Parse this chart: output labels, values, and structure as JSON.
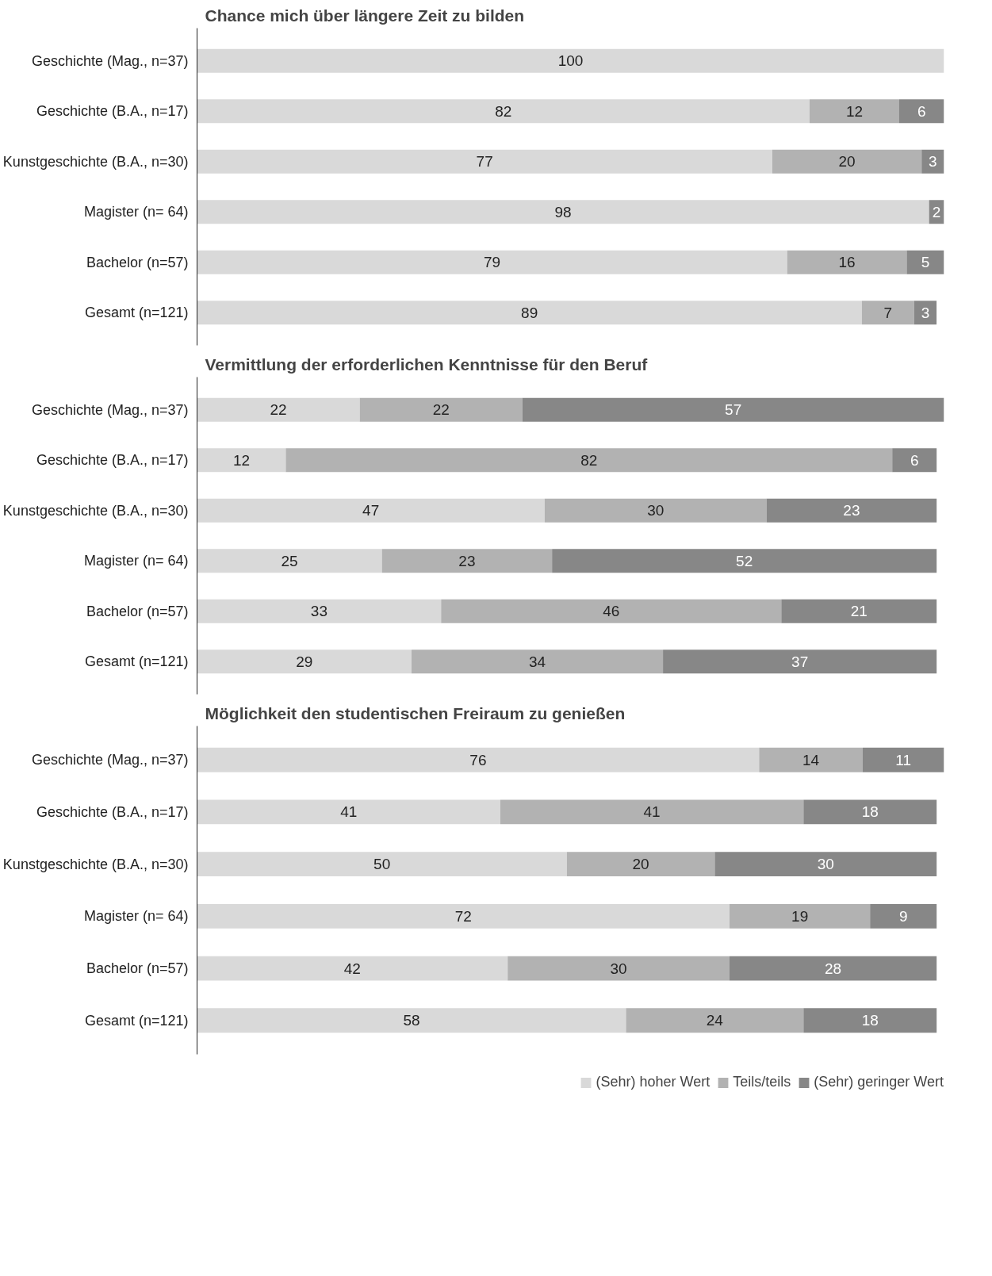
{
  "chart_data": [
    {
      "type": "bar",
      "orientation": "horizontal",
      "stacked": true,
      "data_labels": true,
      "grid": false,
      "title": "Chance mich über längere Zeit zu bilden",
      "categories": [
        "Geschichte (Mag., n=37)",
        "Geschichte (B.A., n=17)",
        "Kunstgeschichte (B.A., n=30)",
        "Magister (n= 64)",
        "Bachelor (n=57)",
        "Gesamt (n=121)"
      ],
      "series": [
        {
          "color": "#d9d9d9",
          "values": [
            100,
            82,
            77,
            98,
            79,
            89
          ]
        },
        {
          "color": "#b2b2b2",
          "values": [
            null,
            12,
            20,
            null,
            16,
            7
          ]
        },
        {
          "color": "#878787",
          "values": [
            null,
            6,
            3,
            2,
            5,
            3
          ]
        }
      ]
    },
    {
      "type": "bar",
      "orientation": "horizontal",
      "stacked": true,
      "data_labels": true,
      "grid": false,
      "title": "Vermittlung der erforderlichen Kenntnisse für den Beruf",
      "categories": [
        "Geschichte (Mag., n=37)",
        "Geschichte (B.A., n=17)",
        "Kunstgeschichte (B.A., n=30)",
        "Magister (n= 64)",
        "Bachelor (n=57)",
        "Gesamt (n=121)"
      ],
      "series": [
        {
          "color": "#d9d9d9",
          "values": [
            22,
            12,
            47,
            25,
            33,
            29
          ]
        },
        {
          "color": "#b2b2b2",
          "values": [
            22,
            82,
            30,
            23,
            46,
            34
          ]
        },
        {
          "color": "#878787",
          "values": [
            57,
            6,
            23,
            52,
            21,
            37
          ]
        }
      ]
    },
    {
      "type": "bar",
      "orientation": "horizontal",
      "stacked": true,
      "data_labels": true,
      "legend": "bottom",
      "grid": false,
      "title": "Möglichkeit den studentischen Freiraum zu genießen",
      "categories": [
        "Geschichte (Mag., n=37)",
        "Geschichte (B.A., n=17)",
        "Kunstgeschichte (B.A., n=30)",
        "Magister (n= 64)",
        "Bachelor (n=57)",
        "Gesamt (n=121)"
      ],
      "series": [
        {
          "name": "(Sehr) hoher Wert",
          "color": "#d9d9d9",
          "values": [
            76,
            41,
            50,
            72,
            42,
            58
          ]
        },
        {
          "name": "Teils/teils",
          "color": "#b2b2b2",
          "values": [
            14,
            41,
            20,
            19,
            30,
            24
          ]
        },
        {
          "name": "(Sehr) geringer Wert",
          "color": "#878787",
          "values": [
            11,
            18,
            30,
            9,
            28,
            18
          ]
        }
      ]
    }
  ]
}
